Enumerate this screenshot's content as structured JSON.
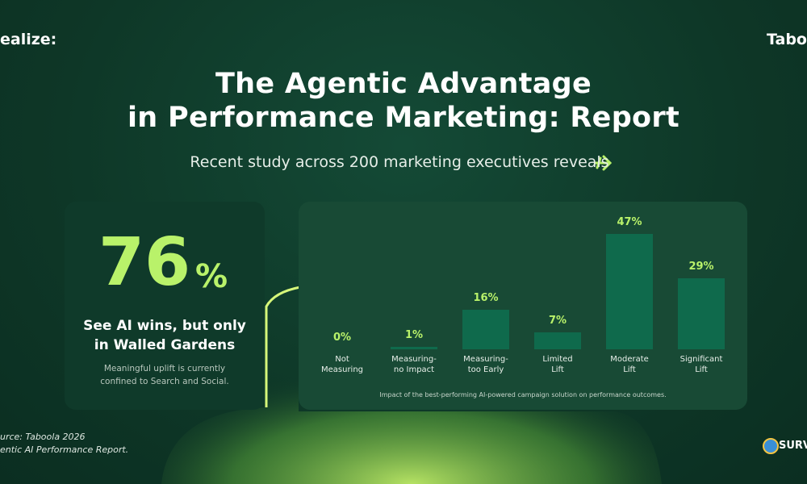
{
  "header": {
    "logo_left": "ealize:",
    "logo_right": "Taboo",
    "title_lines": [
      "The Agentic Advantage",
      "in Performance Marketing: Report"
    ],
    "subtitle": "Recent study across 200 marketing executives reveals"
  },
  "stat": {
    "value": "76",
    "unit": "%",
    "headline_lines": [
      "See AI wins, but only",
      "in Walled Gardens"
    ],
    "note_lines": [
      "Meaningful uplift is currently",
      "confined to Search and Social."
    ]
  },
  "chart_data": {
    "type": "bar",
    "categories": [
      "Not\nMeasuring",
      "Measuring-\nno Impact",
      "Measuring-\ntoo Early",
      "Limited\nLift",
      "Moderate\nLift",
      "Significant\nLift"
    ],
    "values": [
      0,
      1,
      16,
      7,
      47,
      29
    ],
    "value_labels": [
      "0%",
      "1%",
      "16%",
      "7%",
      "47%",
      "29%"
    ],
    "color": "#0f6a4c",
    "caption": "Impact of the best-performing AI-powered campaign solution on performance outcomes."
  },
  "footer": {
    "source_lines": [
      "urce: Taboola 2026",
      "entic AI Performance Report."
    ],
    "logo_right": "SURV"
  }
}
